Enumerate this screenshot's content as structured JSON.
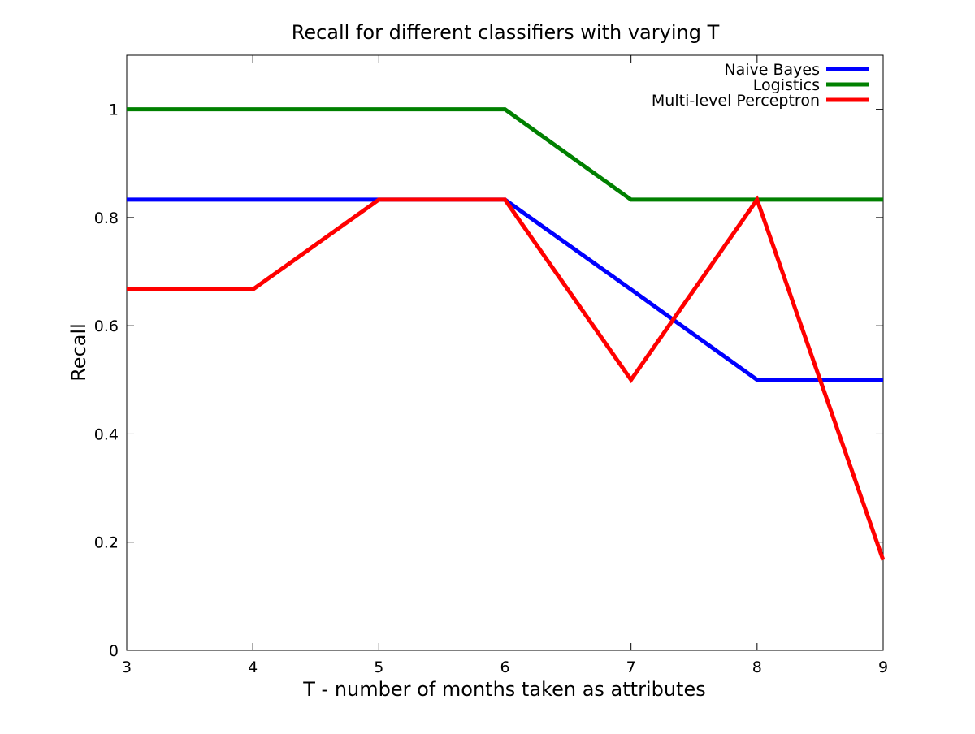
{
  "chart_data": {
    "type": "line",
    "title": "Recall for different classifiers with varying T",
    "xlabel": "T - number of months taken as attributes",
    "ylabel": "Recall",
    "x": [
      3,
      4,
      5,
      6,
      7,
      8,
      9
    ],
    "xlim": [
      3,
      9
    ],
    "ylim": [
      0,
      1.1
    ],
    "xticks": [
      "3",
      "4",
      "5",
      "6",
      "7",
      "8",
      "9"
    ],
    "yticks": [
      {
        "value": 0,
        "label": "0"
      },
      {
        "value": 0.2,
        "label": "0.2"
      },
      {
        "value": 0.4,
        "label": "0.4"
      },
      {
        "value": 0.6,
        "label": "0.6"
      },
      {
        "value": 0.8,
        "label": "0.8"
      },
      {
        "value": 1,
        "label": "1"
      }
    ],
    "grid": false,
    "legend_position": "top-right",
    "series": [
      {
        "name": "Naive Bayes",
        "color": "#0000ff",
        "values": [
          0.833,
          0.833,
          0.833,
          0.833,
          0.667,
          0.5,
          0.5
        ]
      },
      {
        "name": "Logistics",
        "color": "#008000",
        "values": [
          1.0,
          1.0,
          1.0,
          1.0,
          0.833,
          0.833,
          0.833
        ]
      },
      {
        "name": "Multi-level Perceptron",
        "color": "#ff0000",
        "values": [
          0.667,
          0.667,
          0.833,
          0.833,
          0.5,
          0.833,
          0.167
        ]
      }
    ]
  }
}
